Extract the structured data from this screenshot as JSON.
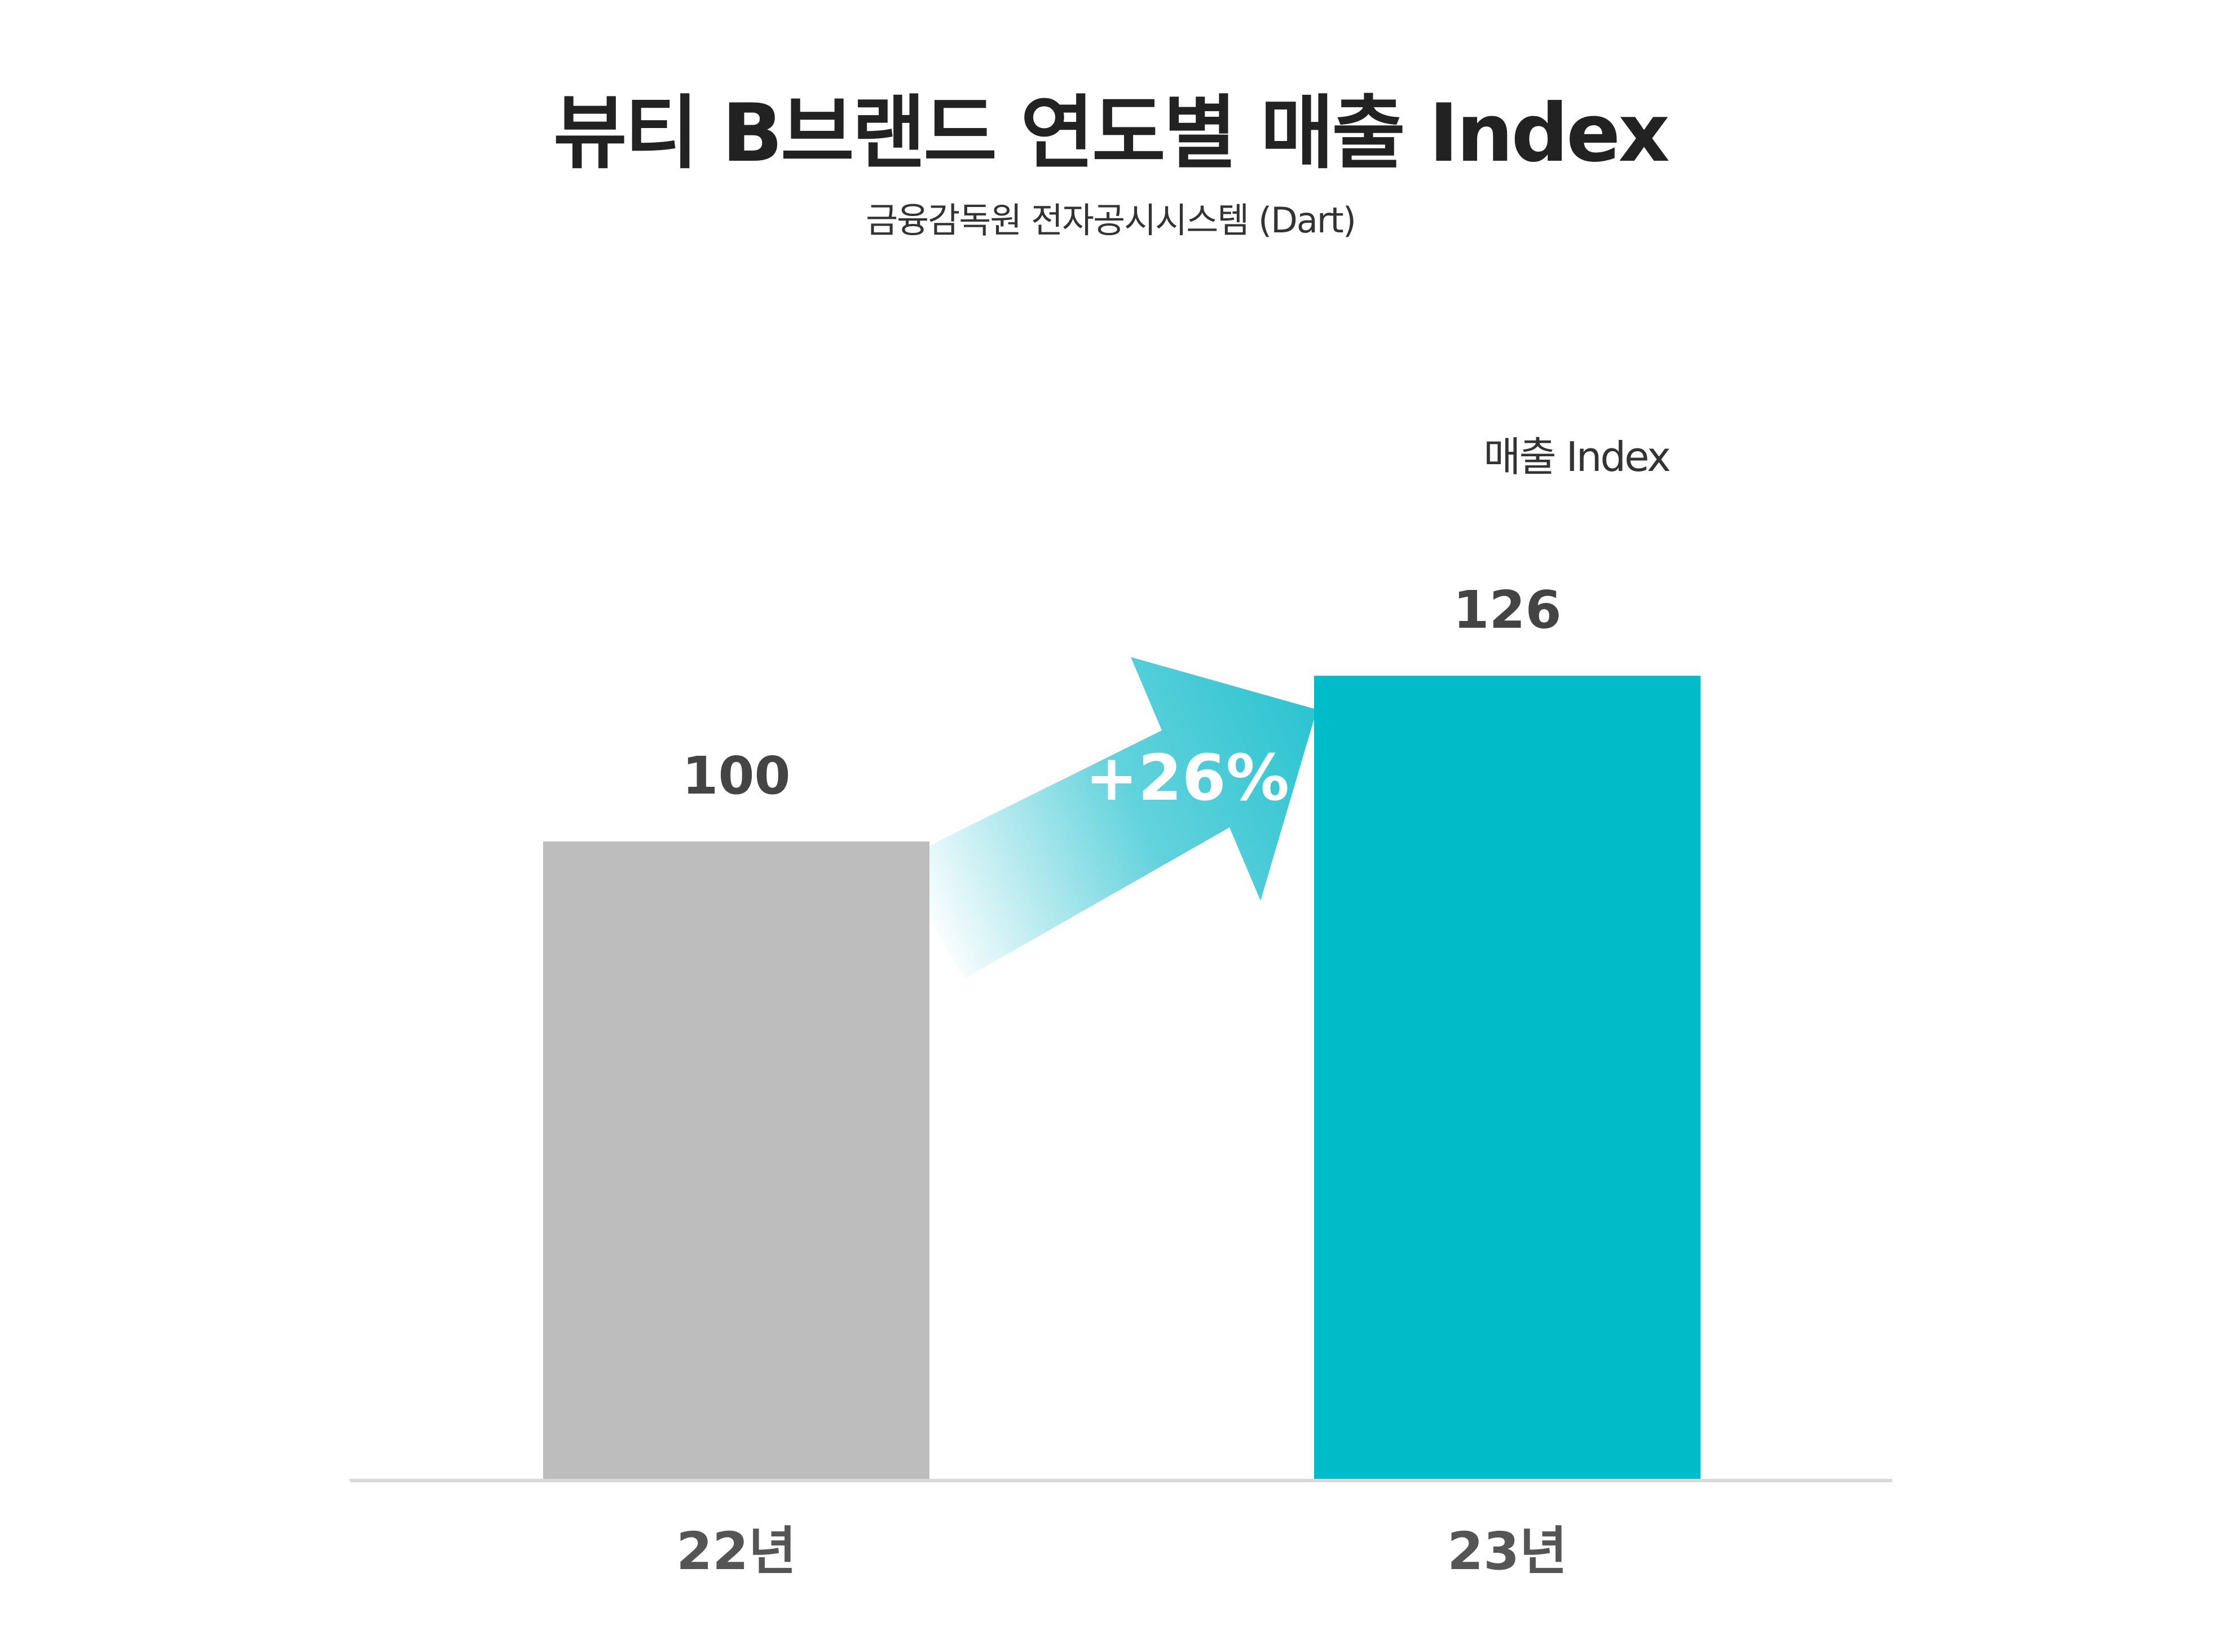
{
  "chart_data": {
    "type": "bar",
    "title": "뷰티 B브랜드 연도별 매출 Index",
    "subtitle": "금융감독원 전자공시시스템 (Dart)",
    "categories": [
      "22년",
      "23년"
    ],
    "series": [
      {
        "name": "매출 Index",
        "values": [
          100,
          126
        ],
        "colors": [
          "#bdbdbd",
          "#00bcc8"
        ]
      }
    ],
    "data_labels": [
      "100",
      "126"
    ],
    "annotation": {
      "text": "+26%",
      "from": "22년",
      "to": "23년",
      "color": "#2ec4d1"
    },
    "ylim": [
      0,
      140
    ],
    "grid": false,
    "legend": "top-right",
    "baseline_color": "#d9d9d9",
    "label_color": "#444444"
  }
}
